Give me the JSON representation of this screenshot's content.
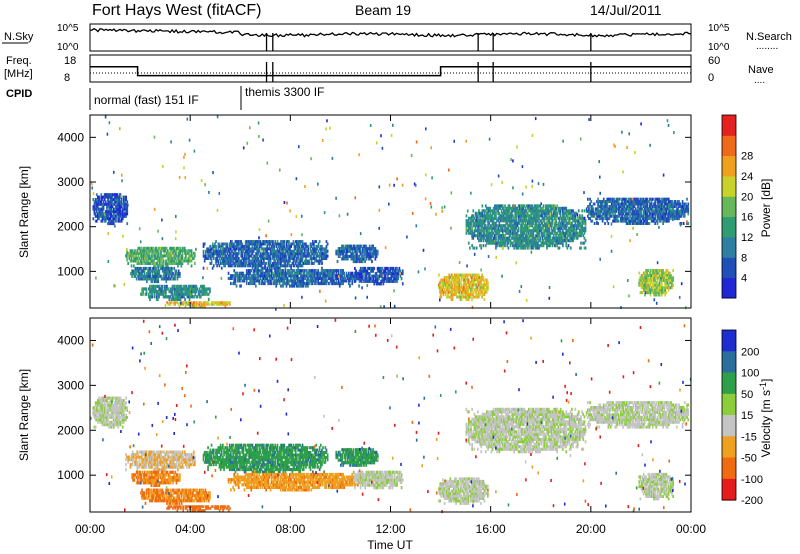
{
  "header": {
    "station": "Fort Hays West (fitACF)",
    "beam": "Beam 19",
    "date": "14/Jul/2011"
  },
  "summary_panels": {
    "nsky_label": "N.Sky",
    "nsearch_label": "N.Search",
    "nsearch_legend": "........",
    "noise_ticks": [
      "10^5",
      "10^0"
    ],
    "freq_label_top": "Freq.",
    "freq_label_bottom": "[MHz]",
    "freq_ticks": [
      "18",
      "8"
    ],
    "nave_label": "Nave",
    "nave_legend": "....",
    "nave_ticks": [
      "60",
      "0"
    ],
    "cpid_label": "CPID",
    "modes": [
      {
        "start_hour": 0.0,
        "end_hour": 6.0,
        "label": "normal (fast) 151 IF"
      },
      {
        "start_hour": 6.0,
        "end_hour": 24.0,
        "label": "themis 3300 IF"
      }
    ],
    "freq_steps_hours": [
      0,
      1.9,
      14.0,
      24
    ],
    "freq_step_values": [
      14,
      10,
      14
    ],
    "scan_break_hours": [
      7.05,
      7.3,
      15.5,
      16.1,
      20.0
    ]
  },
  "chart_data": [
    {
      "type": "heatmap",
      "parameter": "power",
      "xlabel": "Time UT",
      "ylabel": "Slant Range [km]",
      "xlim": [
        0,
        24
      ],
      "ylim": [
        180,
        4500
      ],
      "x_tick_labels": [
        "00:00",
        "04:00",
        "08:00",
        "12:00",
        "16:00",
        "20:00",
        "00:00"
      ],
      "x_tick_hours": [
        0,
        4,
        8,
        12,
        16,
        20,
        24
      ],
      "y_ticks": [
        1000,
        2000,
        3000,
        4000
      ],
      "colorbar": {
        "label": "Power [dB]",
        "ticks": [
          4,
          8,
          12,
          16,
          20,
          24,
          28
        ],
        "colors": [
          "#1f28d4",
          "#1e50b8",
          "#2d7ea0",
          "#2f9c74",
          "#66b85a",
          "#c8d22a",
          "#f0a020",
          "#ef6a1a",
          "#e42020"
        ]
      },
      "echo_regions": [
        {
          "t0": 1.4,
          "t1": 4.2,
          "r0": 1100,
          "r1": 1550,
          "level": 16
        },
        {
          "t0": 1.6,
          "t1": 3.6,
          "r0": 750,
          "r1": 1100,
          "level": 10
        },
        {
          "t0": 2.0,
          "t1": 4.8,
          "r0": 350,
          "r1": 700,
          "level": 12
        },
        {
          "t0": 3.0,
          "t1": 5.6,
          "r0": 200,
          "r1": 330,
          "level": 24
        },
        {
          "t0": 4.5,
          "t1": 9.5,
          "r0": 1050,
          "r1": 1700,
          "level": 8
        },
        {
          "t0": 5.5,
          "t1": 10.8,
          "r0": 650,
          "r1": 1050,
          "level": 8
        },
        {
          "t0": 0.1,
          "t1": 1.5,
          "r0": 2050,
          "r1": 2750,
          "level": 6
        },
        {
          "t0": 9.8,
          "t1": 11.5,
          "r0": 1200,
          "r1": 1600,
          "level": 8
        },
        {
          "t0": 10.5,
          "t1": 12.5,
          "r0": 700,
          "r1": 1100,
          "level": 6
        },
        {
          "t0": 13.9,
          "t1": 15.9,
          "r0": 350,
          "r1": 950,
          "level": 24
        },
        {
          "t0": 15.0,
          "t1": 19.8,
          "r0": 1500,
          "r1": 2500,
          "level": 12
        },
        {
          "t0": 19.8,
          "t1": 23.9,
          "r0": 2050,
          "r1": 2650,
          "level": 8
        },
        {
          "t0": 21.9,
          "t1": 23.3,
          "r0": 450,
          "r1": 1050,
          "level": 20
        }
      ]
    },
    {
      "type": "heatmap",
      "parameter": "velocity",
      "xlabel": "Time UT",
      "ylabel": "Slant Range [km]",
      "xlim": [
        0,
        24
      ],
      "ylim": [
        180,
        4500
      ],
      "x_tick_labels": [
        "00:00",
        "04:00",
        "08:00",
        "12:00",
        "16:00",
        "20:00",
        "00:00"
      ],
      "x_tick_hours": [
        0,
        4,
        8,
        12,
        16,
        20,
        24
      ],
      "y_ticks": [
        1000,
        2000,
        3000,
        4000
      ],
      "colorbar": {
        "label": "Velocity [m s^-1]",
        "ticks": [
          200,
          100,
          50,
          15,
          -15,
          -50,
          -100,
          -200
        ],
        "colors": [
          "#1c2ed0",
          "#2a6e9c",
          "#2f9f4a",
          "#8ccd3c",
          "#c4c4c4",
          "#f0a020",
          "#f06a10",
          "#e41c1c"
        ]
      },
      "echo_regions": [
        {
          "t0": 1.4,
          "t1": 4.2,
          "r0": 1100,
          "r1": 1550,
          "level": -15
        },
        {
          "t0": 1.6,
          "t1": 3.6,
          "r0": 750,
          "r1": 1100,
          "level": -50
        },
        {
          "t0": 2.0,
          "t1": 4.8,
          "r0": 350,
          "r1": 700,
          "level": -50
        },
        {
          "t0": 3.0,
          "t1": 5.6,
          "r0": 200,
          "r1": 330,
          "level": -80
        },
        {
          "t0": 4.5,
          "t1": 9.5,
          "r0": 1050,
          "r1": 1700,
          "level": 40
        },
        {
          "t0": 5.5,
          "t1": 10.8,
          "r0": 650,
          "r1": 1050,
          "level": -40
        },
        {
          "t0": 0.1,
          "t1": 1.5,
          "r0": 2050,
          "r1": 2750,
          "level": 0
        },
        {
          "t0": 9.8,
          "t1": 11.5,
          "r0": 1200,
          "r1": 1600,
          "level": 40
        },
        {
          "t0": 10.5,
          "t1": 12.5,
          "r0": 700,
          "r1": 1100,
          "level": 0
        },
        {
          "t0": 13.9,
          "t1": 15.9,
          "r0": 350,
          "r1": 950,
          "level": 0
        },
        {
          "t0": 15.0,
          "t1": 19.8,
          "r0": 1500,
          "r1": 2500,
          "level": 0
        },
        {
          "t0": 19.8,
          "t1": 23.9,
          "r0": 2050,
          "r1": 2650,
          "level": 0
        },
        {
          "t0": 21.9,
          "t1": 23.3,
          "r0": 450,
          "r1": 1050,
          "level": 0
        }
      ]
    }
  ]
}
